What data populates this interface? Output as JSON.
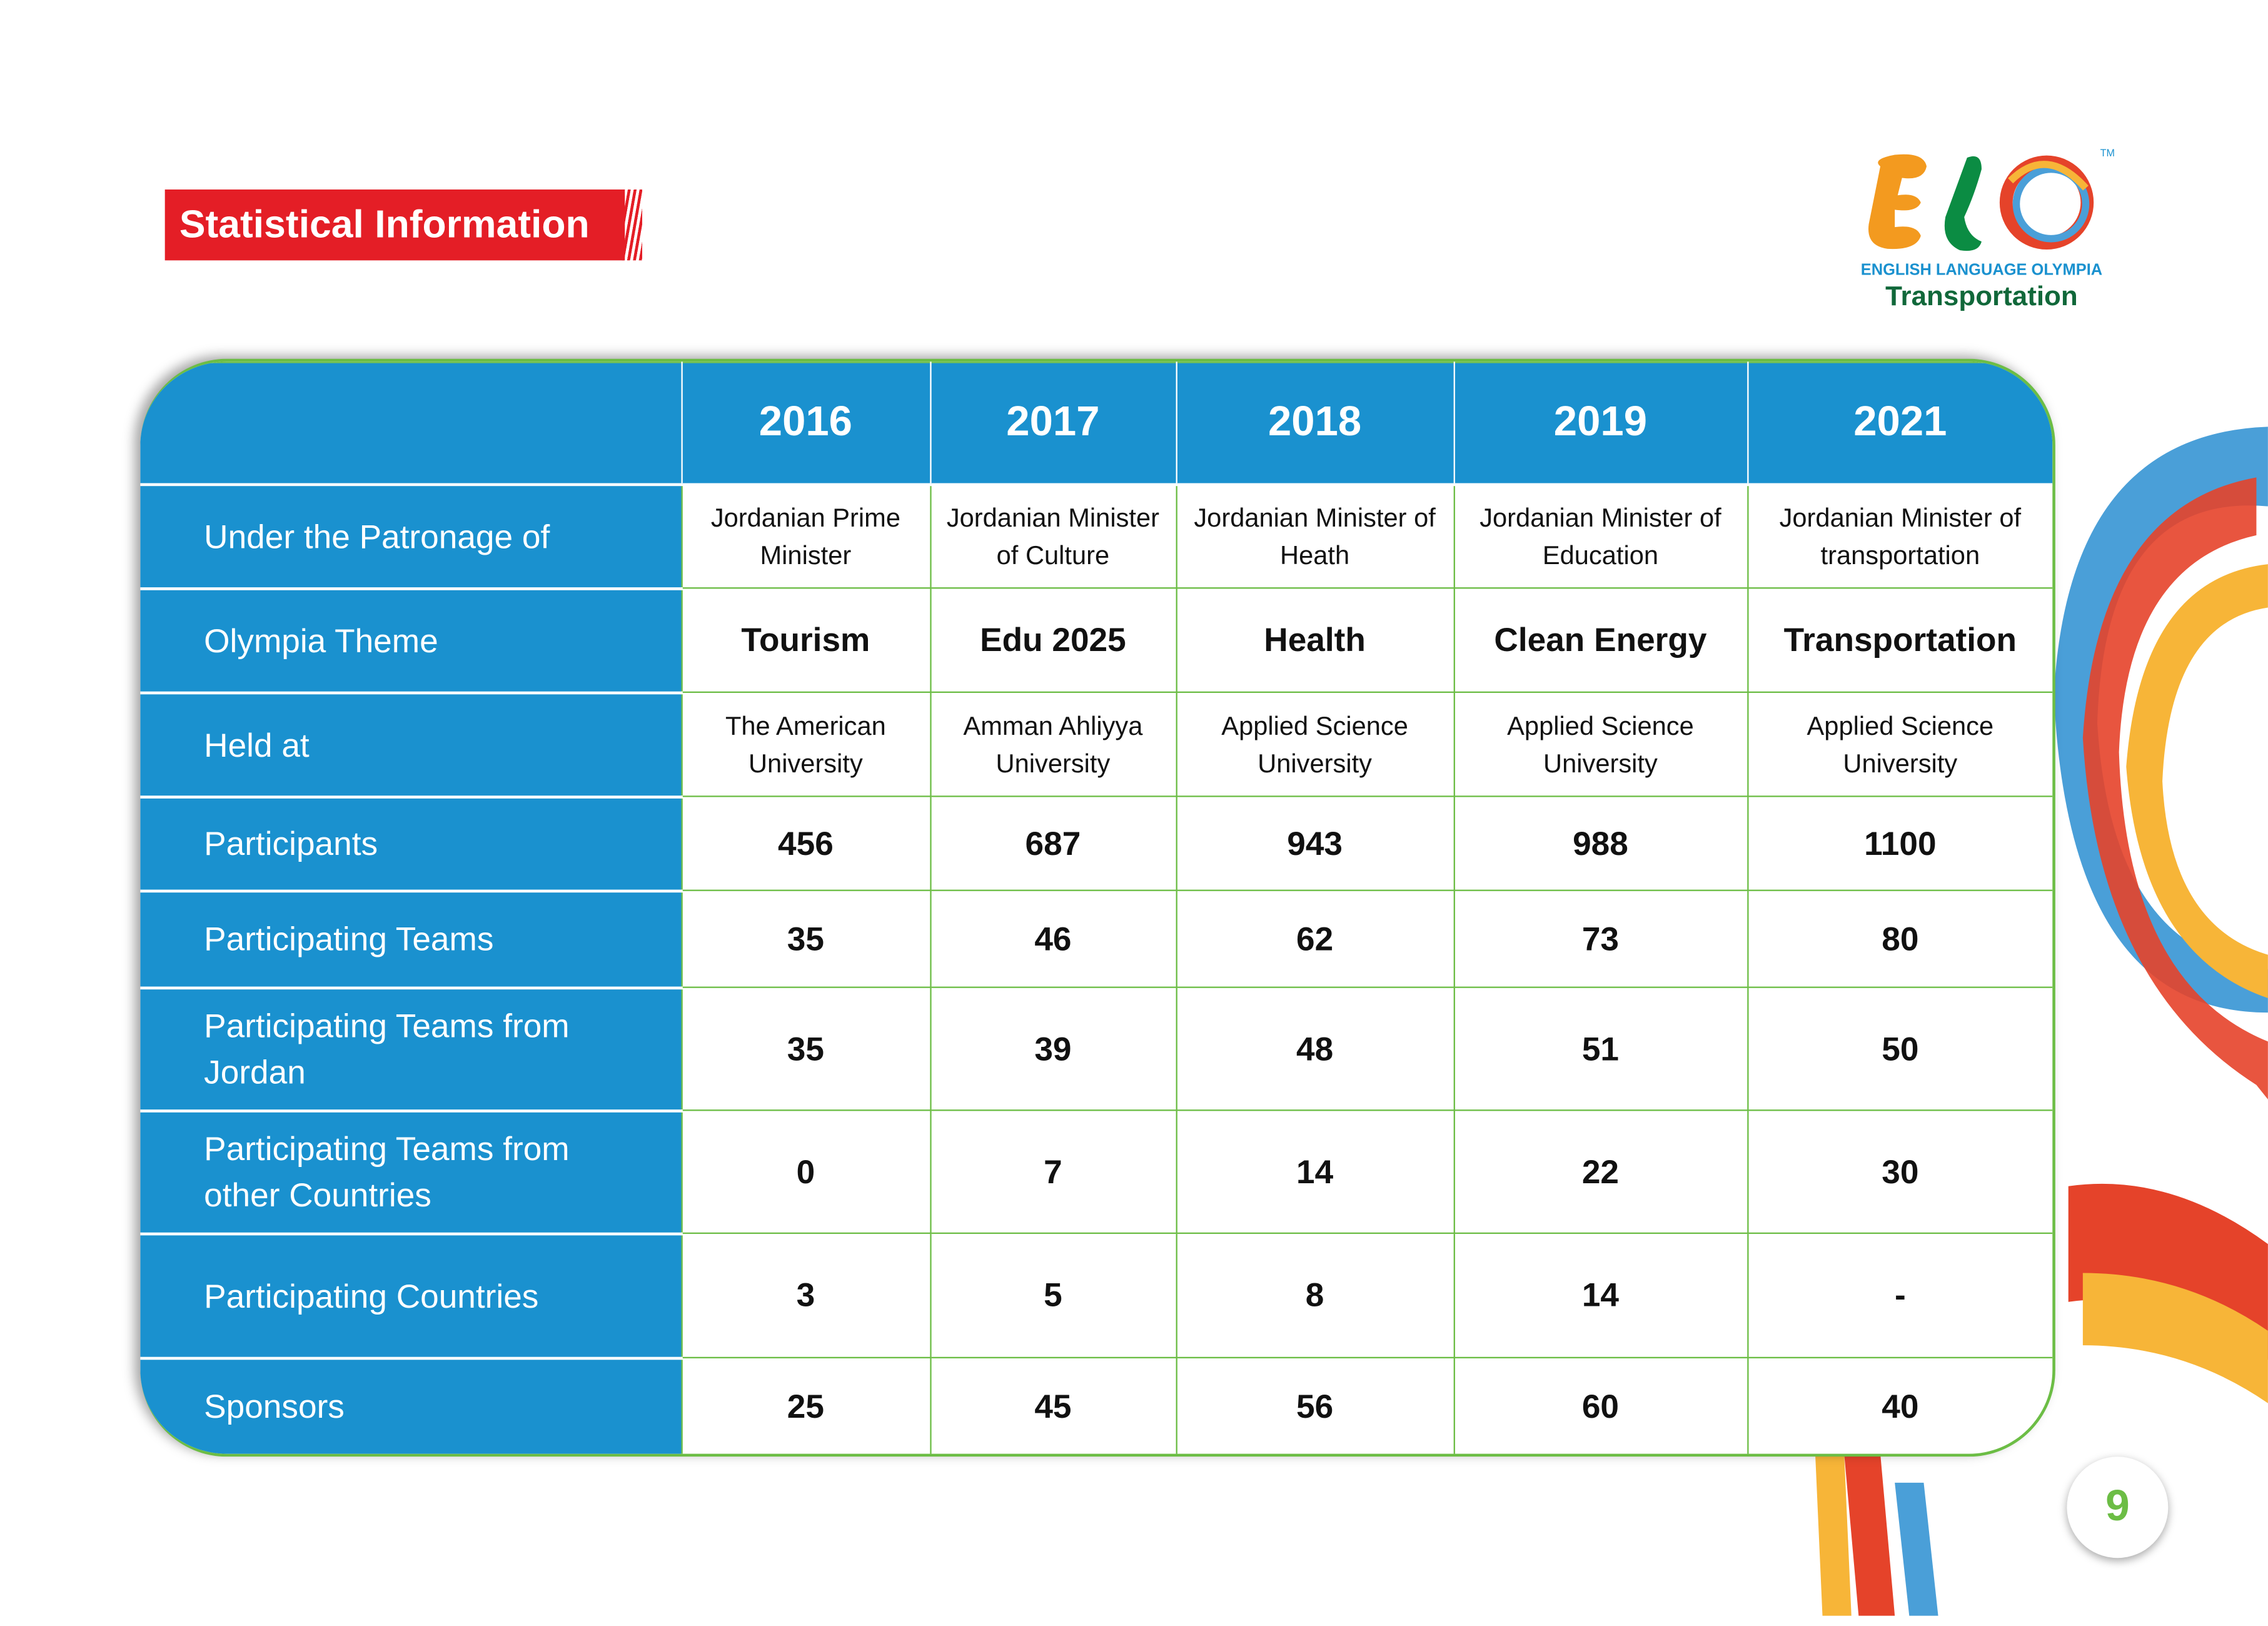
{
  "title": "Statistical Information",
  "logo": {
    "letters": "ELO",
    "tm": "TM",
    "tagline": "ENGLISH LANGUAGE OLYMPIA",
    "theme": "Transportation"
  },
  "years": [
    "2016",
    "2017",
    "2018",
    "2019",
    "2021"
  ],
  "rows": [
    {
      "label": "Under the Patronage of",
      "values": [
        "Jordanian Prime Minister",
        "Jordanian Minister of Culture",
        "Jordanian Minister of Heath",
        "Jordanian Minister of Education",
        "Jordanian Minister of transportation"
      ]
    },
    {
      "label": "Olympia Theme",
      "values": [
        "Tourism",
        "Edu 2025",
        "Health",
        "Clean Energy",
        "Transportation"
      ]
    },
    {
      "label": "Held at",
      "values": [
        "The American University",
        "Amman Ahliyya University",
        "Applied Science University",
        "Applied Science University",
        "Applied Science University"
      ]
    },
    {
      "label": "Participants",
      "values": [
        "456",
        "687",
        "943",
        "988",
        "1100"
      ]
    },
    {
      "label": "Participating Teams",
      "values": [
        "35",
        "46",
        "62",
        "73",
        "80"
      ]
    },
    {
      "label": "Participating Teams from Jordan",
      "values": [
        "35",
        "39",
        "48",
        "51",
        "50"
      ]
    },
    {
      "label": "Participating Teams from other Countries",
      "values": [
        "0",
        "7",
        "14",
        "22",
        "30"
      ]
    },
    {
      "label": "Participating Countries",
      "values": [
        "3",
        "5",
        "8",
        "14",
        "-"
      ]
    },
    {
      "label": "Sponsors",
      "values": [
        "25",
        "45",
        "56",
        "60",
        "40"
      ]
    }
  ],
  "page_number": "9",
  "colors": {
    "blue": "#1a91cf",
    "green": "#6cbd45",
    "red": "#e41e26"
  }
}
